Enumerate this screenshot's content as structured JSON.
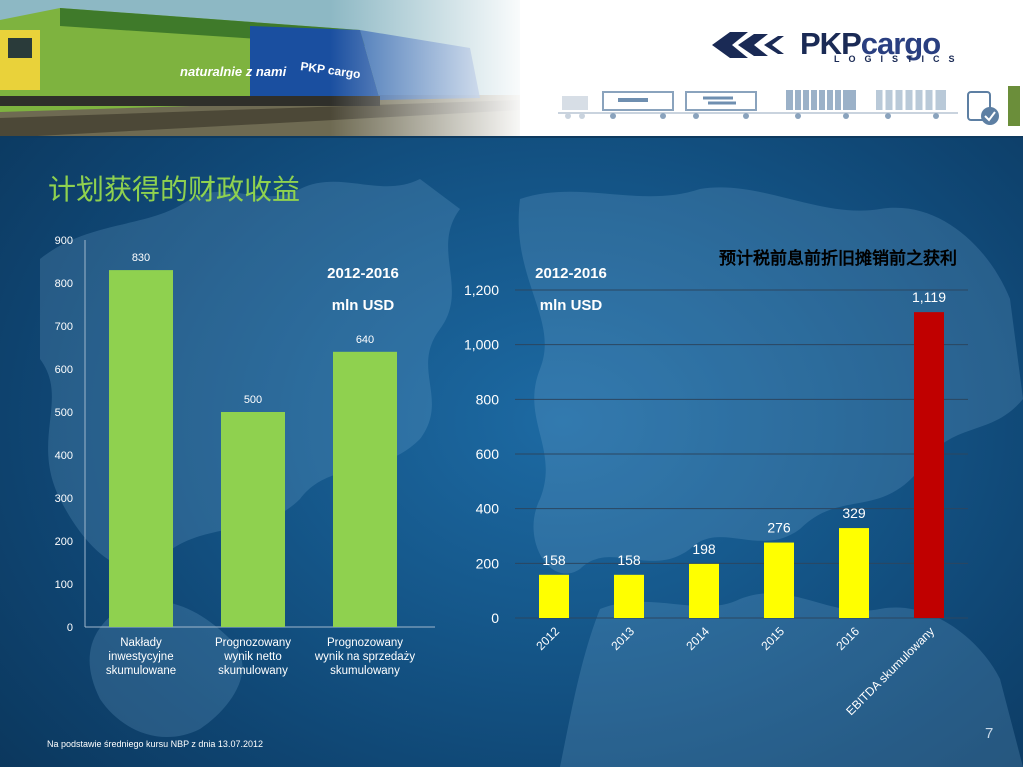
{
  "slide": {
    "title": "计划获得的财政收益",
    "footnote": "Na podstawie średniego kursu NBP z dnia 13.07.2012",
    "page_number": "7"
  },
  "logo": {
    "name_part1": "PKP",
    "name_part2": "cargo",
    "subtitle": "LOGISTICS",
    "train_graphic_text": "naturalnie z nami",
    "train_graphic_brand": "PKP cargo"
  },
  "colors": {
    "title": "#8fd14f",
    "left_bars": "#8fd14f",
    "right_bars": "#ffff00",
    "highlight_bar": "#c00000",
    "background": "#15578a"
  },
  "chart_data": [
    {
      "type": "bar",
      "period": "2012-2016",
      "unit": "mln USD",
      "categories": [
        "Nakłady inwestycyjne skumulowane",
        "Prognozowany wynik netto skumulowany",
        "Prognozowany wynik na sprzedaży skumulowany"
      ],
      "category_lines": [
        [
          "Nakłady",
          "inwestycyjne",
          "skumulowane"
        ],
        [
          "Prognozowany",
          "wynik netto",
          "skumulowany"
        ],
        [
          "Prognozowany",
          "wynik na sprzedaży",
          "skumulowany"
        ]
      ],
      "values": [
        830,
        500,
        640
      ],
      "value_labels": [
        "830",
        "500",
        "640"
      ],
      "ylim": [
        0,
        900
      ],
      "yticks": [
        0,
        100,
        200,
        300,
        400,
        500,
        600,
        700,
        800,
        900
      ],
      "ytick_labels": [
        "0",
        "100",
        "200",
        "300",
        "400",
        "500",
        "600",
        "700",
        "800",
        "900"
      ],
      "grid": false
    },
    {
      "type": "bar",
      "title": "预计税前息前折旧摊销前之获利",
      "period": "2012-2016",
      "unit": "mln USD",
      "categories": [
        "2012",
        "2013",
        "2014",
        "2015",
        "2016",
        "EBITDA skumulowany"
      ],
      "values": [
        158,
        158,
        198,
        276,
        329,
        1119
      ],
      "value_labels": [
        "158",
        "158",
        "198",
        "276",
        "329",
        "1,119"
      ],
      "ylim": [
        0,
        1200
      ],
      "yticks": [
        0,
        200,
        400,
        600,
        800,
        1000,
        1200
      ],
      "ytick_labels": [
        "0",
        "200",
        "400",
        "600",
        "800",
        "1,000",
        "1,200"
      ],
      "grid": true
    }
  ]
}
